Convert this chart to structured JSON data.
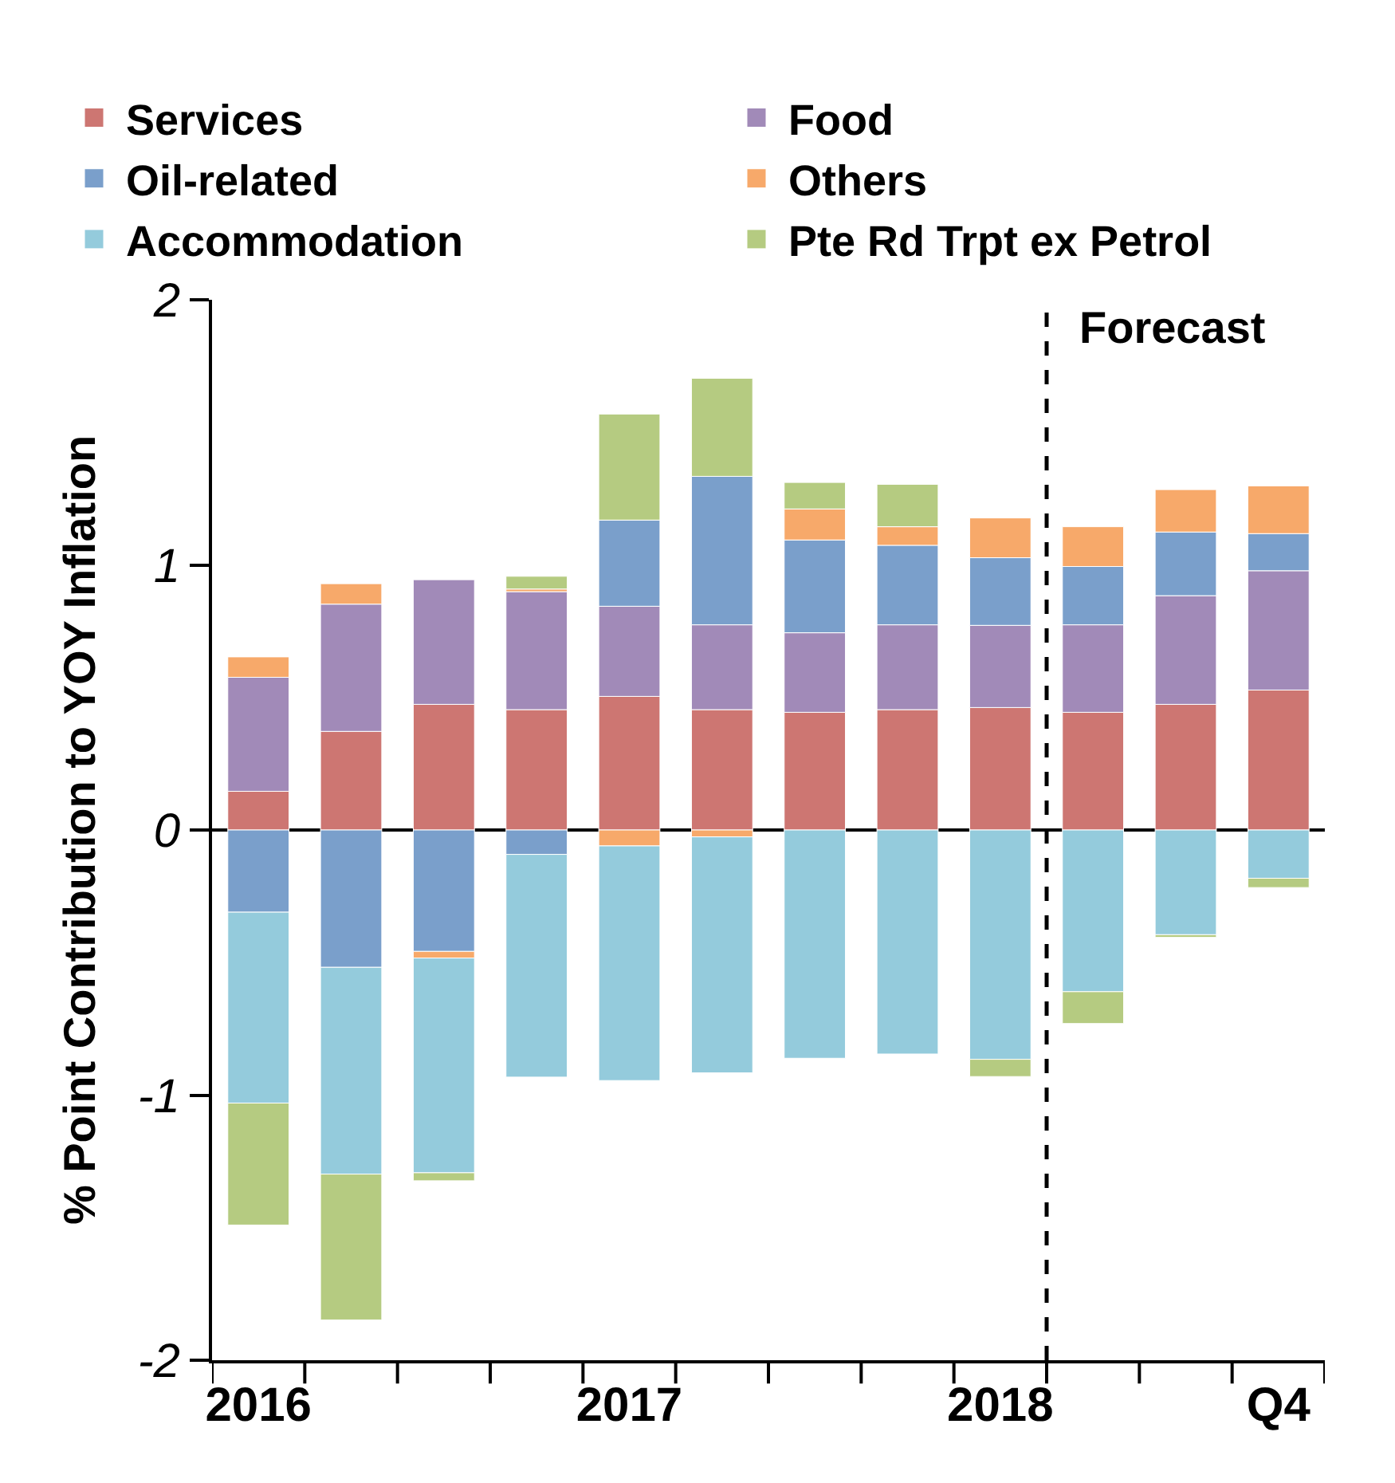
{
  "chart_data": {
    "type": "bar",
    "stacked": true,
    "ylabel": "% Point Contribution to YOY Inflation",
    "categories": [
      "2016",
      null,
      null,
      null,
      "2017",
      null,
      null,
      null,
      "2018",
      null,
      null,
      "Q4"
    ],
    "series": [
      {
        "name": "Services",
        "color": "#cd7672",
        "values": [
          0.146,
          0.372,
          0.474,
          0.454,
          0.504,
          0.454,
          0.444,
          0.454,
          0.462,
          0.444,
          0.474,
          0.528
        ]
      },
      {
        "name": "Food",
        "color": "#a18ab8",
        "values": [
          0.43,
          0.48,
          0.47,
          0.445,
          0.34,
          0.32,
          0.3,
          0.32,
          0.31,
          0.33,
          0.41,
          0.45
        ]
      },
      {
        "name": "Oil-related",
        "color": "#7a9fcb",
        "values": [
          -0.31,
          -0.518,
          -0.458,
          -0.092,
          0.325,
          0.56,
          0.35,
          0.3,
          0.255,
          0.22,
          0.24,
          0.14
        ]
      },
      {
        "name": "Others",
        "color": "#f7a96a",
        "values": [
          0.077,
          0.077,
          -0.025,
          0.01,
          -0.06,
          -0.026,
          0.117,
          0.07,
          0.15,
          0.15,
          0.16,
          0.18
        ]
      },
      {
        "name": "Accommodation",
        "color": "#94cbdc",
        "values": [
          -0.72,
          -0.78,
          -0.81,
          -0.84,
          -0.885,
          -0.89,
          -0.861,
          -0.845,
          -0.865,
          -0.61,
          -0.395,
          -0.182
        ]
      },
      {
        "name": "Pte Rd Trpt ex Petrol",
        "color": "#b5cb81",
        "values": [
          -0.46,
          -0.55,
          -0.03,
          0.048,
          0.4,
          0.37,
          0.1,
          0.16,
          -0.065,
          -0.12,
          -0.01,
          -0.035
        ]
      }
    ],
    "ylim": [
      -2,
      2
    ],
    "yticks": [
      -2,
      -1,
      0,
      1,
      2
    ],
    "legend": "top",
    "annotations": [
      "Forecast"
    ]
  }
}
